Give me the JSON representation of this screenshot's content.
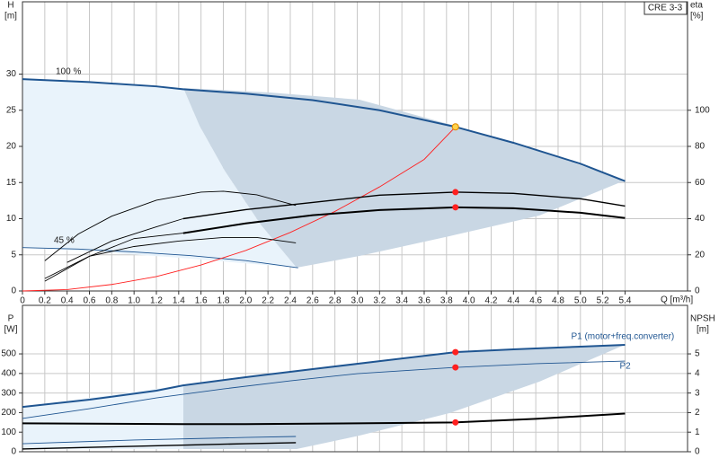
{
  "chart_data": [
    {
      "type": "line",
      "model": "CRE 3-3",
      "y_label": [
        "H",
        "[m]"
      ],
      "y2_label": [
        "eta",
        "[%]"
      ],
      "x_label": "Q [m³/h]",
      "annotations": [
        "100 %",
        "45 %"
      ],
      "xlim": [
        0,
        5.96
      ],
      "xticks": [
        0,
        0.2,
        0.4,
        0.6,
        0.8,
        {
          "value": 1,
          "label": "1.0"
        },
        1.2,
        1.4,
        1.6,
        1.8,
        {
          "value": 2,
          "label": "2.0"
        },
        2.2,
        2.4,
        2.6,
        2.8,
        {
          "value": 3,
          "label": "3.0"
        },
        3.2,
        3.4,
        3.6,
        3.8,
        {
          "value": 4,
          "label": "4.0"
        },
        4.2,
        4.4,
        4.6,
        4.8,
        {
          "value": 5,
          "label": "5.0"
        },
        5.2,
        5.4
      ],
      "ylim": [
        0,
        40
      ],
      "yticks": [
        0,
        5,
        10,
        15,
        20,
        25,
        30
      ],
      "y2lim": [
        0,
        160
      ],
      "y2ticks": [
        0,
        20,
        40,
        60,
        80,
        100
      ],
      "grid": true,
      "series": [
        {
          "color": "#1f5591",
          "weight": "thick",
          "x": [
            0,
            0.6,
            1.2,
            1.44,
            2,
            2.6,
            3.2,
            3.88,
            4.4,
            5,
            5.4
          ],
          "values": [
            29.3,
            28.9,
            28.3,
            27.9,
            27.3,
            26.4,
            25,
            22.7,
            20.5,
            17.6,
            15.2
          ]
        },
        {
          "color": "#1f5591",
          "weight": "thin",
          "x": [
            0,
            0.5,
            1,
            1.5,
            2,
            2.47
          ],
          "values": [
            6,
            5.8,
            5.4,
            4.9,
            4.2,
            3.2
          ]
        },
        {
          "color": "#ff2020",
          "weight": "thin",
          "x": [
            0,
            0.4,
            0.8,
            1.2,
            1.6,
            2,
            2.4,
            2.8,
            3.2,
            3.6,
            3.88
          ],
          "values": [
            0,
            0.2,
            0.9,
            2,
            3.6,
            5.6,
            8.1,
            11,
            14.4,
            18.2,
            22.7
          ]
        },
        {
          "color": "#000000",
          "weight": "medium",
          "axis": "y2",
          "x": [
            1.44,
            2,
            2.6,
            3.2,
            3.88,
            4.4,
            5,
            5.4
          ],
          "values": [
            40,
            45,
            49,
            53,
            54.7,
            54,
            51,
            47
          ]
        },
        {
          "color": "#000000",
          "weight": "thick",
          "axis": "y2",
          "x": [
            1.44,
            2,
            2.6,
            3.2,
            3.88,
            4.4,
            5,
            5.4
          ],
          "values": [
            32,
            37.4,
            41.9,
            44.8,
            46.3,
            45.8,
            43.3,
            40.4
          ]
        },
        {
          "color": "#000000",
          "weight": "thin",
          "axis": "y2",
          "x": [
            0.2,
            0.5,
            0.8,
            1.2,
            1.6,
            1.8,
            2.1,
            2.45
          ],
          "values": [
            16.7,
            31.5,
            41.4,
            50.2,
            54.7,
            55.2,
            53.2,
            47.3
          ]
        },
        {
          "color": "#000000",
          "weight": "thin",
          "axis": "y2",
          "x": [
            0.2,
            0.6,
            1,
            1.44
          ],
          "values": [
            5.4,
            19.2,
            29,
            32
          ]
        },
        {
          "color": "#000000",
          "weight": "thin",
          "axis": "y2",
          "x": [
            0.4,
            0.8,
            1.2,
            1.44
          ],
          "values": [
            15.8,
            27.6,
            35.5,
            40
          ]
        },
        {
          "color": "#000000",
          "weight": "thin",
          "axis": "y2",
          "x": [
            0.2,
            0.6,
            1,
            1.4,
            1.8,
            2.1,
            2.45
          ],
          "values": [
            6.9,
            19.2,
            24.6,
            27.6,
            29.6,
            29.6,
            26.6
          ]
        },
        {
          "color": "#ffd24a",
          "marker": true,
          "x": [
            3.88
          ],
          "values": [
            22.7
          ]
        },
        {
          "color": "#ff2020",
          "marker": true,
          "axis": "y2",
          "x": [
            3.88,
            3.88
          ],
          "values": [
            54.7,
            46.3
          ]
        }
      ]
    },
    {
      "type": "line",
      "y_label": [
        "P",
        "[W]"
      ],
      "y2_label": [
        "NPSH",
        "[m]"
      ],
      "xlim": [
        0,
        5.96
      ],
      "ylim": [
        0,
        748
      ],
      "yticks": [
        0,
        100,
        200,
        300,
        400,
        500
      ],
      "y2lim": [
        0,
        7.48
      ],
      "y2ticks": [
        0,
        1,
        2,
        3,
        4,
        5
      ],
      "grid": true,
      "series": [
        {
          "name": "P1 (motor+freq.converter)",
          "color": "#1f5591",
          "weight": "thick",
          "x": [
            0,
            0.6,
            1.2,
            1.44,
            2,
            2.6,
            3.2,
            3.88,
            4.4,
            5,
            5.4
          ],
          "values": [
            229,
            266,
            312,
            339,
            381,
            422,
            463,
            509,
            523,
            537,
            546
          ]
        },
        {
          "name": "P2",
          "color": "#1f5591",
          "weight": "thin",
          "x": [
            0,
            0.6,
            1.2,
            1.8,
            2.4,
            3,
            3.88,
            4.6,
            5.4
          ],
          "values": [
            170,
            220,
            275,
            321,
            362,
            399,
            431,
            450,
            463
          ]
        },
        {
          "color": "#000000",
          "weight": "thick",
          "axis": "y2",
          "x": [
            0,
            1.44,
            2,
            3,
            3.88,
            4.6,
            5.4
          ],
          "values": [
            1.45,
            1.41,
            1.41,
            1.45,
            1.5,
            1.68,
            1.95
          ]
        },
        {
          "color": "#1f5591",
          "weight": "thin",
          "x": [
            0,
            1,
            2,
            2.45
          ],
          "values": [
            41,
            60,
            73,
            78
          ]
        },
        {
          "color": "#000000",
          "weight": "medium",
          "x": [
            0,
            1,
            2,
            2.45
          ],
          "values": [
            14,
            28,
            41,
            46
          ]
        },
        {
          "color": "#ff2020",
          "marker": true,
          "x": [
            3.88,
            3.88
          ],
          "values": [
            509,
            431
          ]
        },
        {
          "color": "#ff2020",
          "marker": true,
          "axis": "y2",
          "x": [
            3.88
          ],
          "values": [
            1.5
          ]
        }
      ]
    }
  ]
}
